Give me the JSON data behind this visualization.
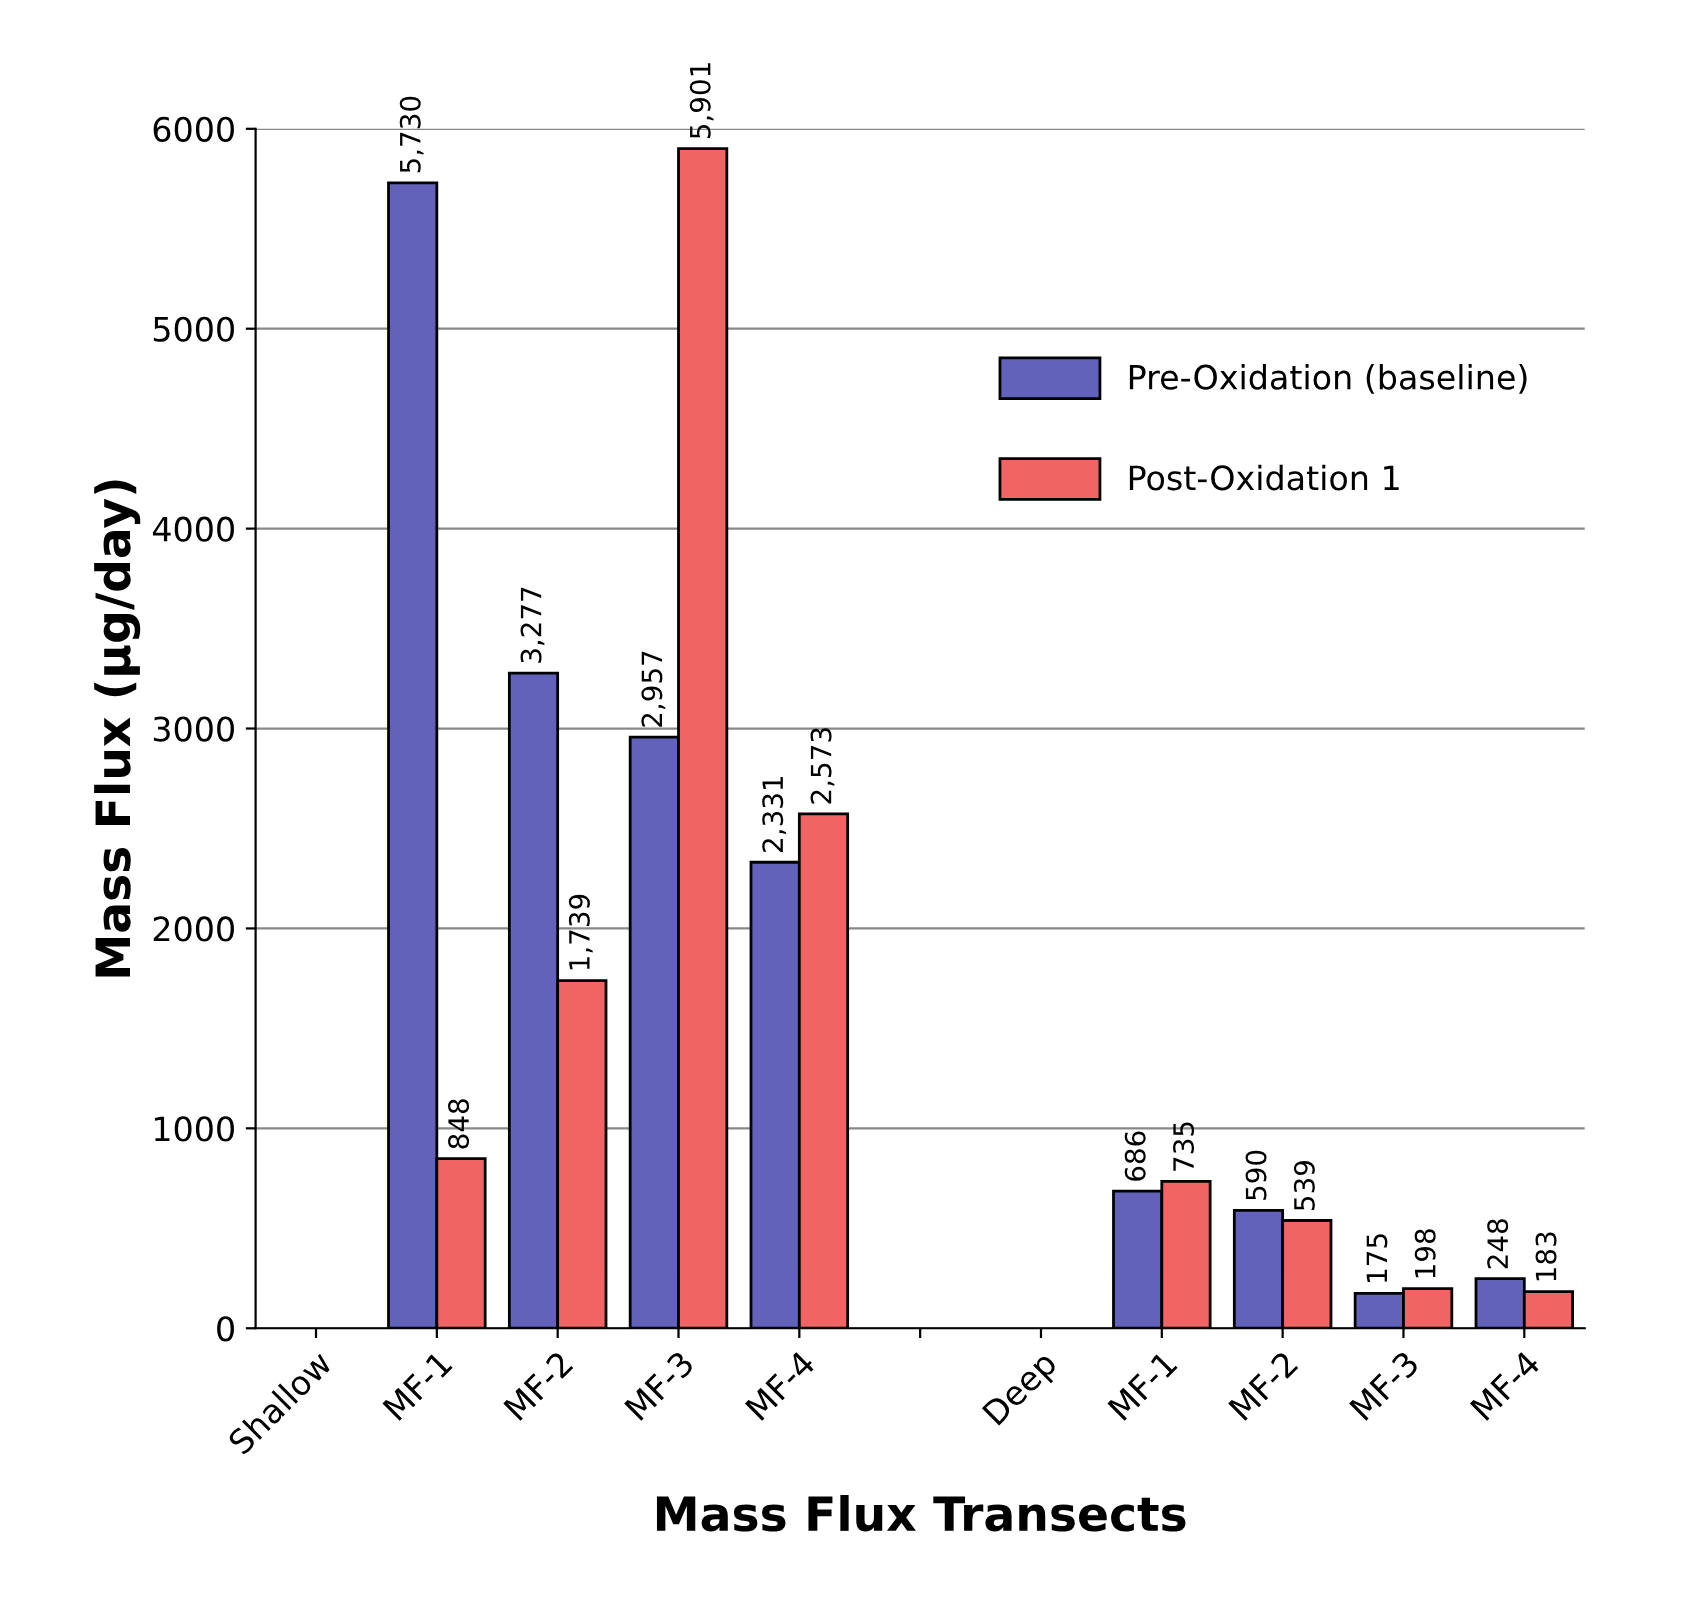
{
  "chart_data": {
    "type": "bar",
    "xlabel": "Mass Flux Transects",
    "ylabel": "Mass Flux (µg/day)",
    "categories": [
      "Shallow",
      "MF-1",
      "MF-2",
      "MF-3",
      "MF-4",
      null,
      "Deep",
      "MF-1",
      "MF-2",
      "MF-3",
      "MF-4"
    ],
    "series": [
      {
        "name": "Pre-Oxidation (baseline)",
        "color": "#6262bb",
        "values": [
          null,
          5730,
          3277,
          2957,
          2331,
          null,
          null,
          686,
          590,
          175,
          248
        ],
        "value_labels": [
          null,
          "5,730",
          "3,277",
          "2,957",
          "2,331",
          null,
          null,
          "686",
          "590",
          "175",
          "248"
        ]
      },
      {
        "name": "Post-Oxidation 1",
        "color": "#f06464",
        "values": [
          null,
          848,
          1739,
          5901,
          2573,
          null,
          null,
          735,
          539,
          198,
          183
        ],
        "value_labels": [
          null,
          "848",
          "1,739",
          "5,901",
          "2,573",
          null,
          null,
          "735",
          "539",
          "198",
          "183"
        ]
      }
    ],
    "ylim": [
      0,
      6000
    ],
    "yticks": [
      0,
      1000,
      2000,
      3000,
      4000,
      5000,
      6000
    ],
    "grid": "y",
    "legend": "top right"
  }
}
